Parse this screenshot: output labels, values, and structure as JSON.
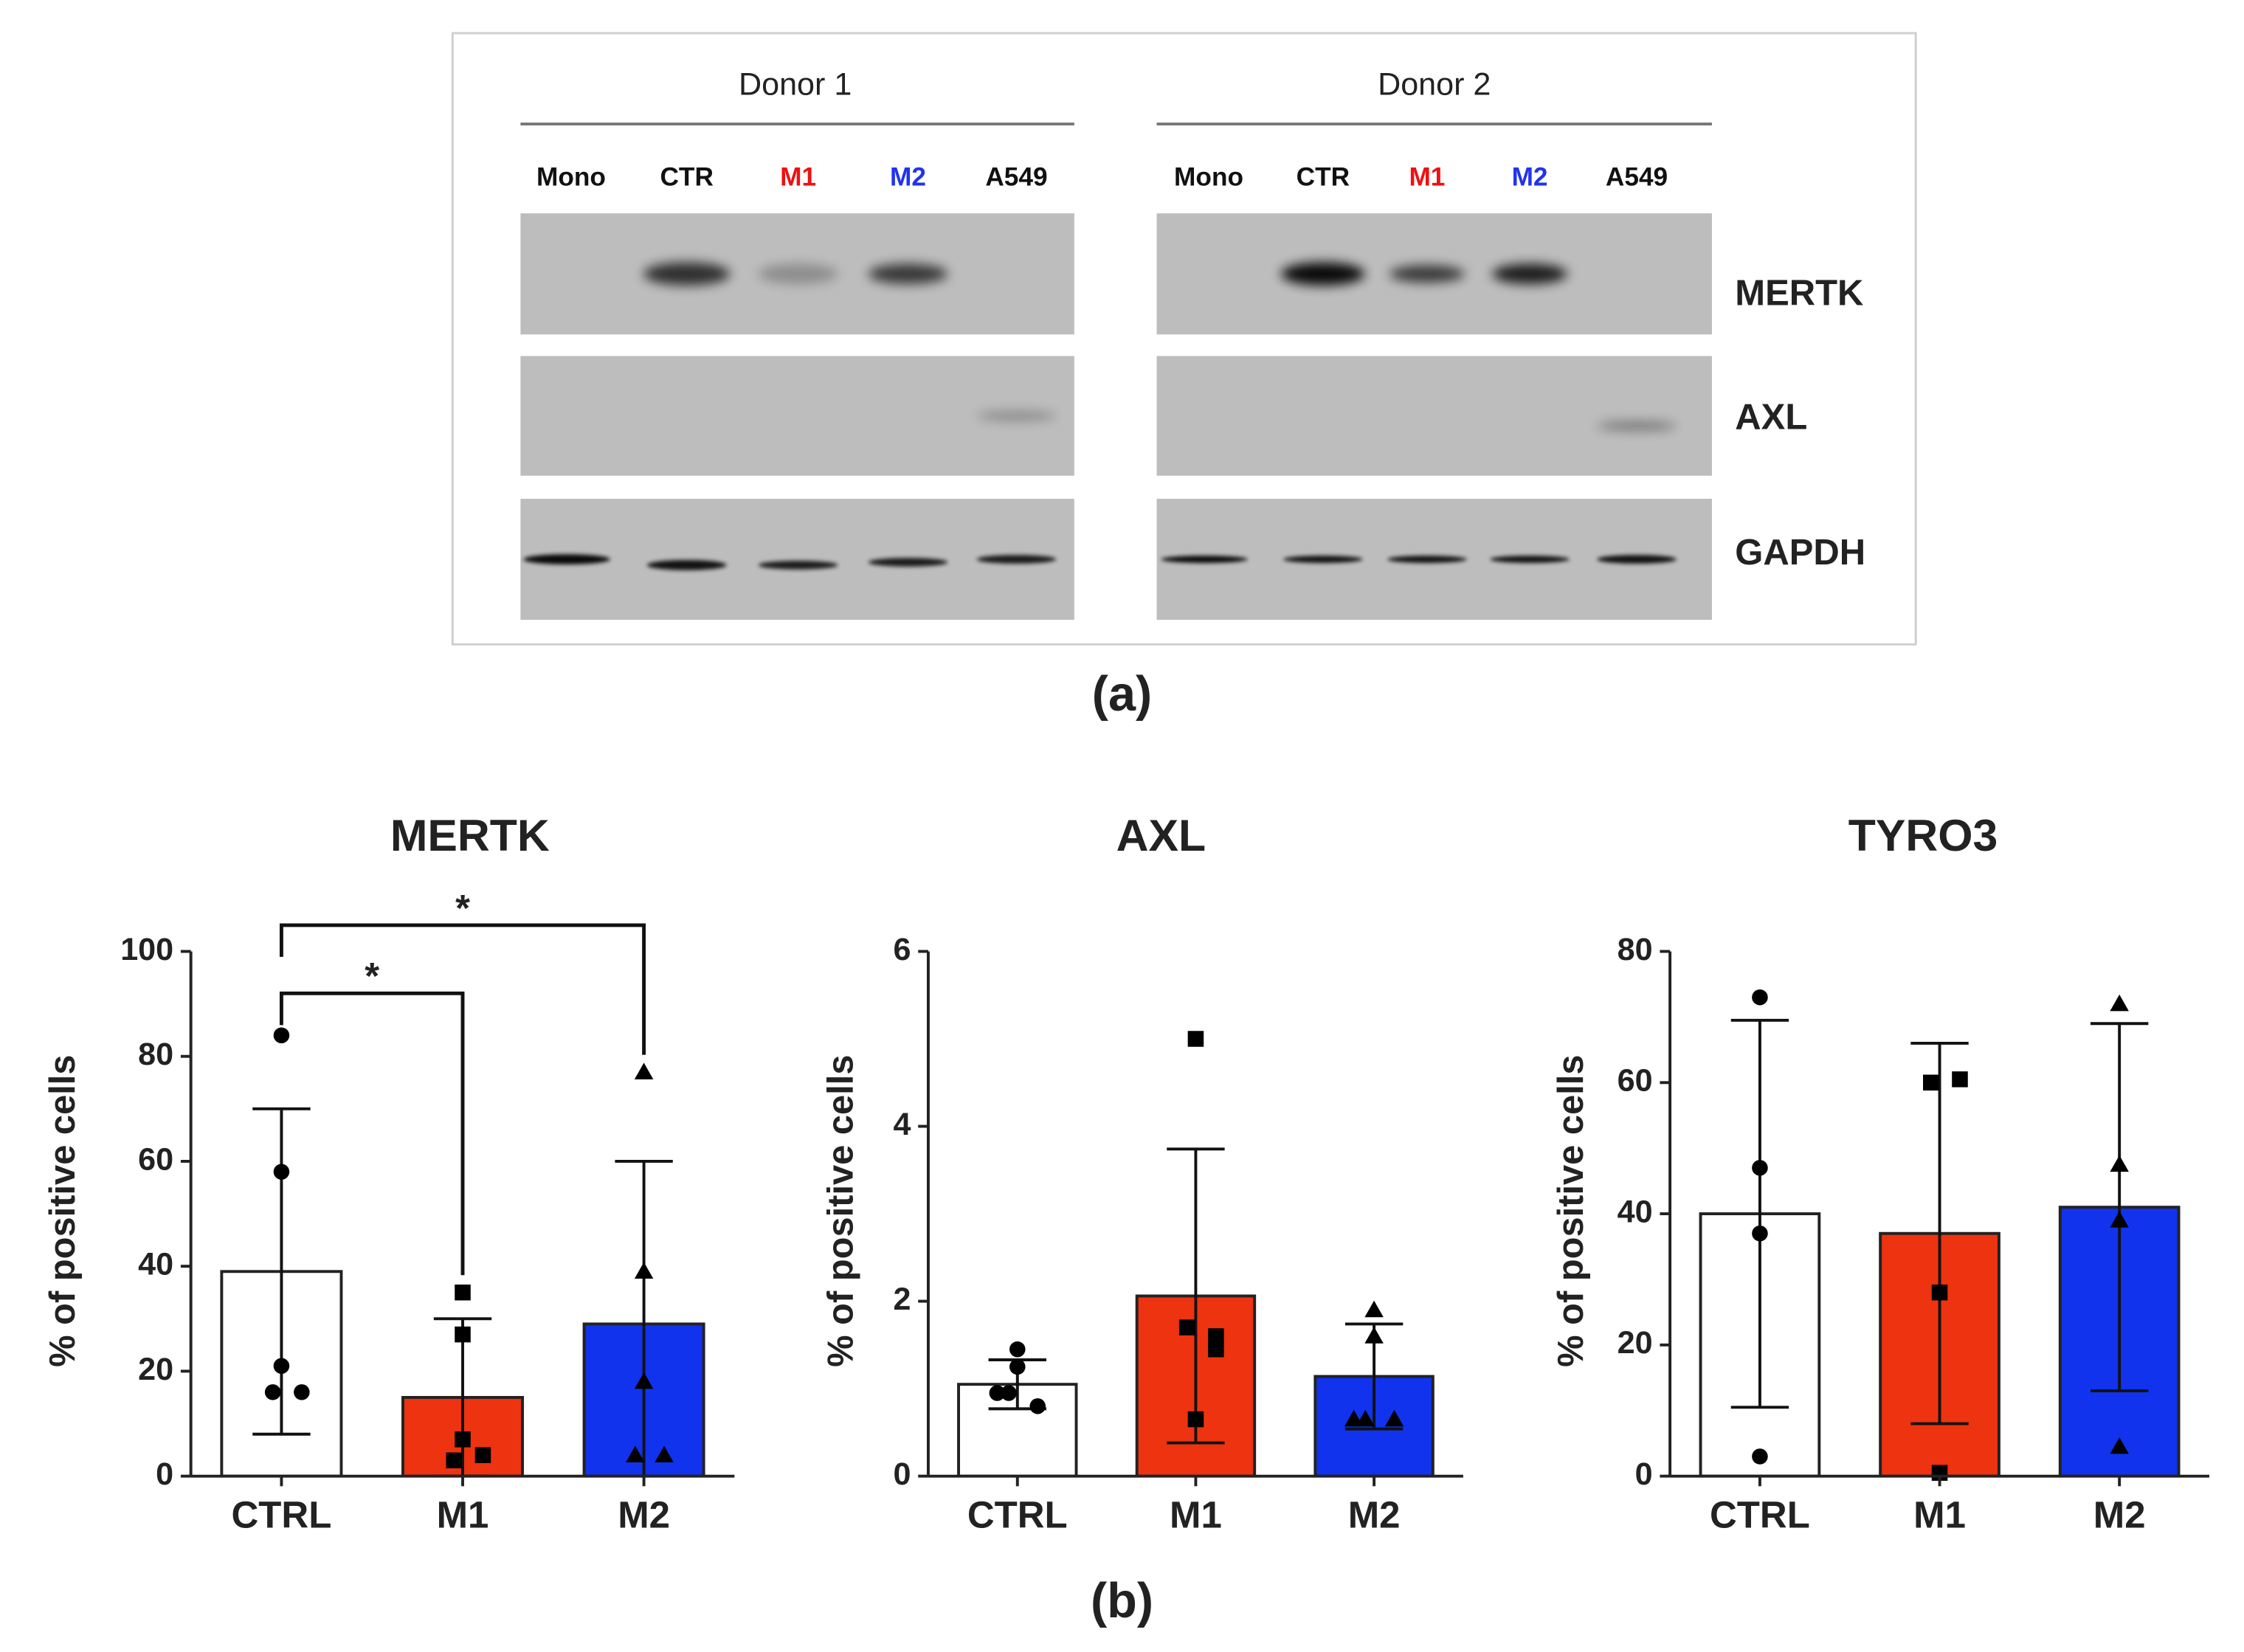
{
  "blot": {
    "donors": [
      {
        "label": "Donor 1",
        "lanes": [
          "Mono",
          "CTR",
          "M1",
          "M2",
          "A549"
        ]
      },
      {
        "label": "Donor 2",
        "lanes": [
          "Mono",
          "CTR",
          "M1",
          "M2",
          "A549"
        ]
      }
    ],
    "rows": [
      "MERTK",
      "AXL",
      "GAPDH"
    ],
    "panel_label": "(a)"
  },
  "panel_label_b": "(b)",
  "chart_data": [
    {
      "type": "bar",
      "title": "MERTK",
      "ylabel": "% of positive cells",
      "categories": [
        "CTRL",
        "M1",
        "M2"
      ],
      "values": [
        39,
        15,
        29
      ],
      "errors": [
        31,
        15,
        31
      ],
      "colors": [
        "#ffffff",
        "#ee3311",
        "#1133ee"
      ],
      "markers": [
        "circle",
        "square",
        "triangle"
      ],
      "points": [
        [
          84,
          58,
          21,
          16,
          16
        ],
        [
          35,
          27,
          7,
          3,
          4
        ],
        [
          77,
          39,
          18,
          4,
          4
        ]
      ],
      "ylim": [
        0,
        100
      ],
      "yticks": [
        0,
        20,
        40,
        60,
        80,
        100
      ],
      "annotations": [
        {
          "text": "*",
          "from": 0,
          "to": 1,
          "y": 92
        },
        {
          "text": "*",
          "from": 0,
          "to": 2,
          "y": 105
        }
      ]
    },
    {
      "type": "bar",
      "title": "AXL",
      "ylabel": "% of positive cells",
      "categories": [
        "CTRL",
        "M1",
        "M2"
      ],
      "values": [
        1.05,
        2.06,
        1.14
      ],
      "errors": [
        0.28,
        1.68,
        0.6
      ],
      "colors": [
        "#ffffff",
        "#ee3311",
        "#1133ee"
      ],
      "markers": [
        "circle",
        "square",
        "triangle"
      ],
      "points": [
        [
          1.45,
          1.25,
          0.95,
          0.8,
          0.95
        ],
        [
          5.0,
          1.7,
          1.6,
          1.45,
          0.65
        ],
        [
          1.9,
          1.6,
          0.65,
          0.65,
          0.65
        ]
      ],
      "ylim": [
        0,
        6
      ],
      "yticks": [
        0,
        2,
        4,
        6
      ]
    },
    {
      "type": "bar",
      "title": "TYRO3",
      "ylabel": "% of positive cells",
      "categories": [
        "CTRL",
        "M1",
        "M2"
      ],
      "values": [
        40,
        37,
        41
      ],
      "errors": [
        29.5,
        29,
        28
      ],
      "colors": [
        "#ffffff",
        "#ee3311",
        "#1133ee"
      ],
      "markers": [
        "circle",
        "square",
        "triangle"
      ],
      "points": [
        [
          73,
          47,
          37,
          3
        ],
        [
          60,
          60.5,
          28,
          0.5
        ],
        [
          72,
          47.5,
          39,
          4.5
        ]
      ],
      "ylim": [
        0,
        80
      ],
      "yticks": [
        0,
        20,
        40,
        60,
        80
      ]
    }
  ]
}
